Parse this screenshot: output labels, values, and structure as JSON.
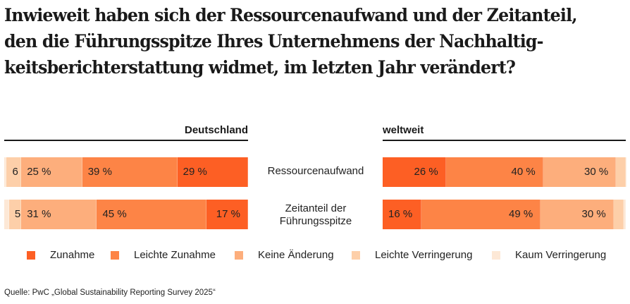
{
  "title_lines": [
    "Inwieweit haben sich der Ressourcenaufwand und der Zeitanteil,",
    "den die Führungsspitze Ihres Unternehmens der Nachhaltig-",
    "keitsberichterstattung widmet, im letzten Jahr verändert?"
  ],
  "source": "Quelle: PwC „Global Sustainability Reporting Survey 2025“",
  "colors": {
    "Zunahme": "#fd5f24",
    "Leichte Zunahme": "#fd8446",
    "Keine Änderung": "#fdae7c",
    "Leichte Verringerung": "#fdcfa9",
    "Kaum Verringerung": "#fde8d6"
  },
  "chart_data": {
    "type": "bar",
    "orientation": "horizontal-stacked",
    "title": "Inwieweit haben sich der Ressourcenaufwand und der Zeitanteil, den die Führungsspitze Ihres Unternehmens der Nachhaltigkeitsberichterstattung widmet, im letzten Jahr verändert?",
    "categories": [
      "Ressourcenaufwand",
      "Zeitanteil der Führungsspitze"
    ],
    "category_labels": [
      "Ressourcenaufwand",
      "Zeitanteil der\nFührungsspitze"
    ],
    "legend": [
      "Zunahme",
      "Leichte Zunahme",
      "Keine Änderung",
      "Leichte Verringerung",
      "Kaum Verringerung"
    ],
    "legend_placement": "bottom",
    "unit": "%",
    "panels": [
      {
        "name": "Deutschland",
        "series": [
          {
            "name": "Zunahme",
            "values": [
              29,
              17
            ],
            "labels": [
              "29 %",
              "17 %"
            ]
          },
          {
            "name": "Leichte Zunahme",
            "values": [
              39,
              45
            ],
            "labels": [
              "39 %",
              "45 %"
            ]
          },
          {
            "name": "Keine Änderung",
            "values": [
              25,
              31
            ],
            "labels": [
              "25 %",
              "31 %"
            ]
          },
          {
            "name": "Leichte Verringerung",
            "values": [
              6,
              5
            ],
            "labels": [
              "6",
              "5"
            ]
          },
          {
            "name": "Kaum Verringerung",
            "values": [
              1,
              2
            ],
            "labels": [
              "",
              ""
            ]
          }
        ]
      },
      {
        "name": "weltweit",
        "series": [
          {
            "name": "Zunahme",
            "values": [
              26,
              16
            ],
            "labels": [
              "26 %",
              "16 %"
            ]
          },
          {
            "name": "Leichte Zunahme",
            "values": [
              40,
              49
            ],
            "labels": [
              "40 %",
              "49 %"
            ]
          },
          {
            "name": "Keine Änderung",
            "values": [
              30,
              30
            ],
            "labels": [
              "30 %",
              "30 %"
            ]
          },
          {
            "name": "Leichte Verringerung",
            "values": [
              4,
              4
            ],
            "labels": [
              "",
              ""
            ]
          },
          {
            "name": "Kaum Verringerung",
            "values": [
              0,
              1
            ],
            "labels": [
              "",
              ""
            ]
          }
        ]
      }
    ]
  }
}
